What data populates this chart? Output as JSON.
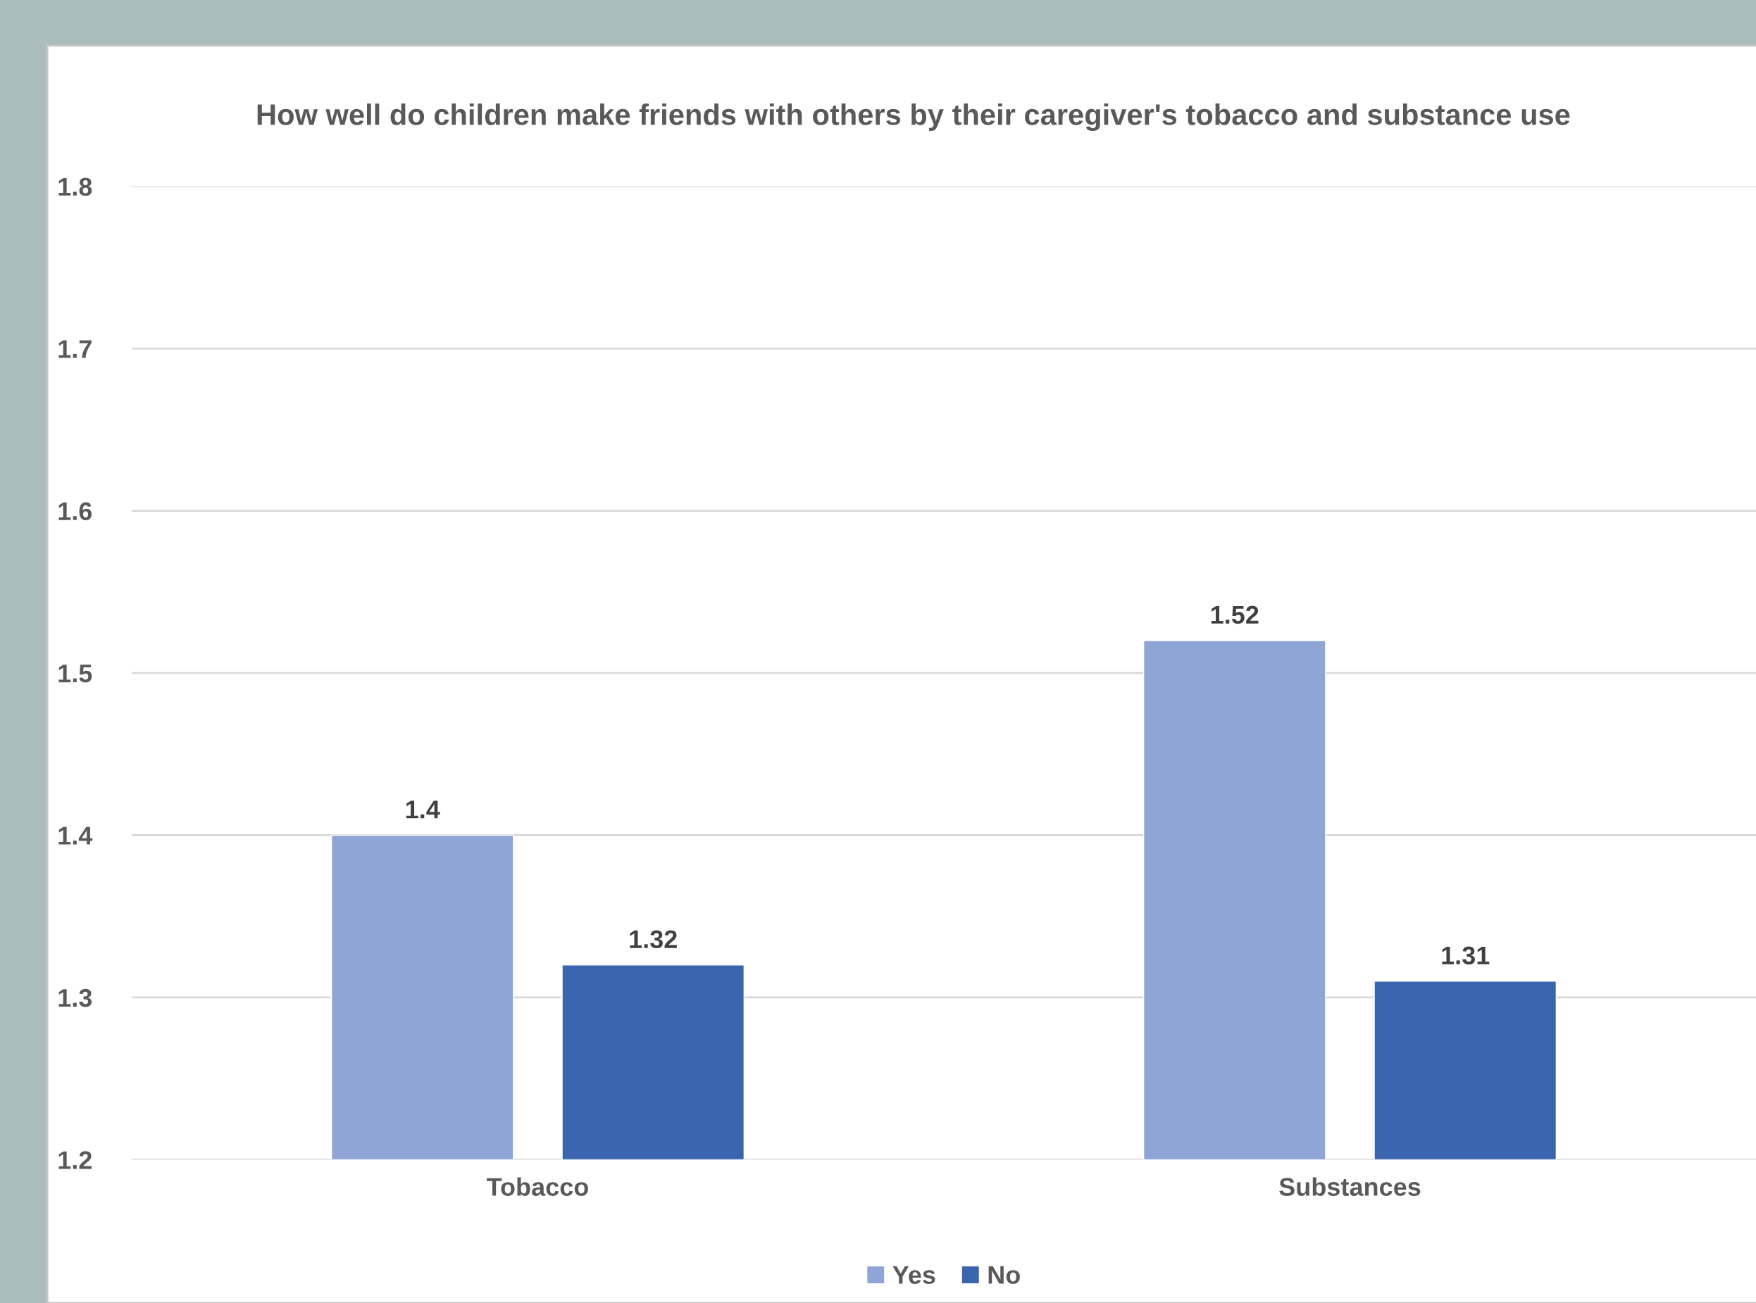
{
  "chart_data": {
    "type": "bar",
    "title": "How well do children make friends with others by their caregiver's tobacco and substance use",
    "categories": [
      "Tobacco",
      "Substances"
    ],
    "series": [
      {
        "name": "Yes",
        "color": "#8fa5d5",
        "values": [
          1.4,
          1.52
        ]
      },
      {
        "name": "No",
        "color": "#3a64ad",
        "values": [
          1.32,
          1.31
        ]
      }
    ],
    "ylim": [
      1.2,
      1.8
    ],
    "yticks": [
      1.2,
      1.3,
      1.4,
      1.5,
      1.6,
      1.7,
      1.8
    ],
    "grid": "y",
    "legend": "bottom",
    "data_labels": true
  }
}
